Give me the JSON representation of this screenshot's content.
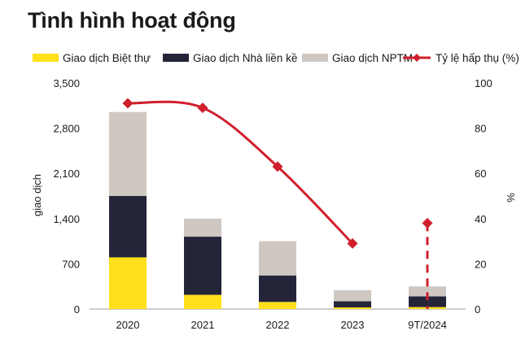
{
  "chart_data": {
    "type": "bar",
    "title": "Tình hình hoạt động",
    "categories": [
      "2020",
      "2021",
      "2022",
      "2023",
      "9T/2024"
    ],
    "series": [
      {
        "name": "Giao dịch Biệt thự",
        "values": [
          800,
          220,
          110,
          25,
          30
        ],
        "color": "#FFE01A"
      },
      {
        "name": "Giao dịch Nhà liền kề",
        "values": [
          950,
          900,
          410,
          95,
          165
        ],
        "color": "#25253A"
      },
      {
        "name": "Giao dịch NPTM",
        "values": [
          1300,
          280,
          530,
          170,
          155
        ],
        "color": "#CFC7C1"
      }
    ],
    "line_series": {
      "name": "Tỷ lệ hấp thụ (%)",
      "values": [
        91,
        89,
        63,
        29,
        38
      ],
      "color": "#D11F2C",
      "dashed_last_segment": true
    },
    "ylabel": "giao dịch",
    "y2label": "%",
    "ylim": [
      0,
      3500
    ],
    "y2lim": [
      0,
      100
    ],
    "yticks": [
      "0",
      "700",
      "1,400",
      "2,100",
      "2,800",
      "3,500"
    ],
    "yticks_values": [
      0,
      700,
      1400,
      2100,
      2800,
      3500
    ],
    "y2ticks": [
      "0",
      "20",
      "40",
      "60",
      "80",
      "100"
    ],
    "y2ticks_values": [
      0,
      20,
      40,
      60,
      80,
      100
    ],
    "grid": false,
    "legend": "top"
  }
}
